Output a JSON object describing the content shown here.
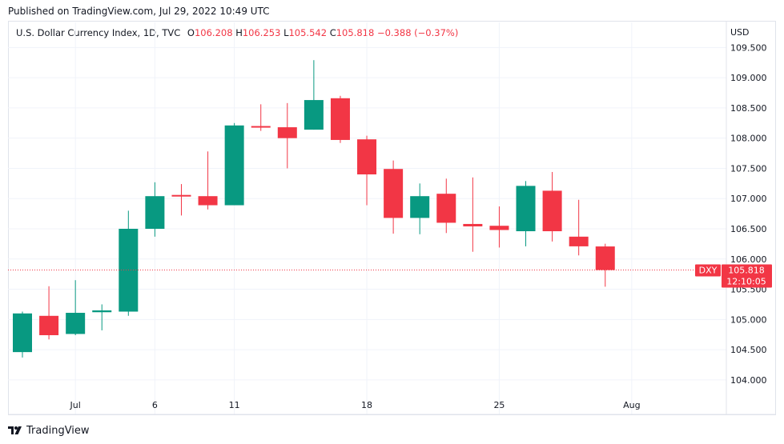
{
  "published": "Published on TradingView.com, Jul 29, 2022 10:49 UTC",
  "legend": {
    "symbol": "U.S. Dollar Currency Index, 1D, TVC",
    "open_label": "O",
    "open": "106.208",
    "high_label": "H",
    "high": "106.253",
    "low_label": "L",
    "low": "105.542",
    "close_label": "C",
    "close": "105.818",
    "change": "−0.388 (−0.37%)"
  },
  "footer": {
    "brand": "TradingView",
    "logo_icon": "tradingview-logo-icon"
  },
  "colors": {
    "up": "#089981",
    "down": "#f23645",
    "grid": "#f0f3fa",
    "axis_text": "#131722"
  },
  "chart_data": {
    "type": "candlestick",
    "currency": "USD",
    "ylim": [
      103.8,
      109.65
    ],
    "y_ticks": [
      104.0,
      104.5,
      105.0,
      105.5,
      106.0,
      106.5,
      107.0,
      107.5,
      108.0,
      108.5,
      109.0,
      109.5
    ],
    "y_tick_labels": [
      "104.000",
      "104.500",
      "105.000",
      "105.500",
      "106.000",
      "106.500",
      "107.000",
      "107.500",
      "108.000",
      "108.500",
      "109.000",
      "109.500"
    ],
    "x_tick_labels": [
      {
        "label": "Jul",
        "index": 2
      },
      {
        "label": "6",
        "index": 5
      },
      {
        "label": "11",
        "index": 8
      },
      {
        "label": "18",
        "index": 13
      },
      {
        "label": "25",
        "index": 18
      },
      {
        "label": "Aug",
        "index": 23
      }
    ],
    "current_price": {
      "symbol": "DXY",
      "price": "105.818",
      "countdown": "12:10:05",
      "value": 105.818
    },
    "grid": true,
    "candles": [
      {
        "date": "2022-06-28",
        "open": 104.46,
        "high": 105.13,
        "low": 104.37,
        "close": 105.1
      },
      {
        "date": "2022-06-29",
        "open": 105.06,
        "high": 105.55,
        "low": 104.67,
        "close": 104.74
      },
      {
        "date": "2022-06-30",
        "open": 104.76,
        "high": 105.65,
        "low": 104.74,
        "close": 105.11
      },
      {
        "date": "2022-07-01",
        "open": 105.12,
        "high": 105.25,
        "low": 104.82,
        "close": 105.15
      },
      {
        "date": "2022-07-04",
        "open": 105.13,
        "high": 106.8,
        "low": 105.06,
        "close": 106.5
      },
      {
        "date": "2022-07-05",
        "open": 106.5,
        "high": 107.27,
        "low": 106.37,
        "close": 107.04
      },
      {
        "date": "2022-07-06",
        "open": 107.06,
        "high": 107.24,
        "low": 106.72,
        "close": 107.04
      },
      {
        "date": "2022-07-07",
        "open": 107.04,
        "high": 107.78,
        "low": 106.82,
        "close": 106.89
      },
      {
        "date": "2022-07-08",
        "open": 106.89,
        "high": 108.25,
        "low": 106.89,
        "close": 108.21
      },
      {
        "date": "2022-07-11",
        "open": 108.2,
        "high": 108.56,
        "low": 108.12,
        "close": 108.18
      },
      {
        "date": "2022-07-12",
        "open": 108.18,
        "high": 108.58,
        "low": 107.5,
        "close": 108.0
      },
      {
        "date": "2022-07-13",
        "open": 108.14,
        "high": 109.29,
        "low": 108.14,
        "close": 108.63
      },
      {
        "date": "2022-07-14",
        "open": 108.66,
        "high": 108.7,
        "low": 107.92,
        "close": 107.97
      },
      {
        "date": "2022-07-15",
        "open": 107.98,
        "high": 108.04,
        "low": 106.89,
        "close": 107.4
      },
      {
        "date": "2022-07-18",
        "open": 107.49,
        "high": 107.63,
        "low": 106.42,
        "close": 106.68
      },
      {
        "date": "2022-07-19",
        "open": 106.68,
        "high": 107.25,
        "low": 106.41,
        "close": 107.04
      },
      {
        "date": "2022-07-20",
        "open": 107.08,
        "high": 107.33,
        "low": 106.43,
        "close": 106.6
      },
      {
        "date": "2022-07-21",
        "open": 106.58,
        "high": 107.35,
        "low": 106.12,
        "close": 106.54
      },
      {
        "date": "2022-07-22",
        "open": 106.55,
        "high": 106.87,
        "low": 106.19,
        "close": 106.48
      },
      {
        "date": "2022-07-25",
        "open": 106.46,
        "high": 107.29,
        "low": 106.21,
        "close": 107.21
      },
      {
        "date": "2022-07-26",
        "open": 107.13,
        "high": 107.44,
        "low": 106.29,
        "close": 106.46
      },
      {
        "date": "2022-07-27",
        "open": 106.37,
        "high": 106.98,
        "low": 106.06,
        "close": 106.21
      },
      {
        "date": "2022-07-28",
        "open": 106.208,
        "high": 106.253,
        "low": 105.542,
        "close": 105.818
      }
    ]
  }
}
